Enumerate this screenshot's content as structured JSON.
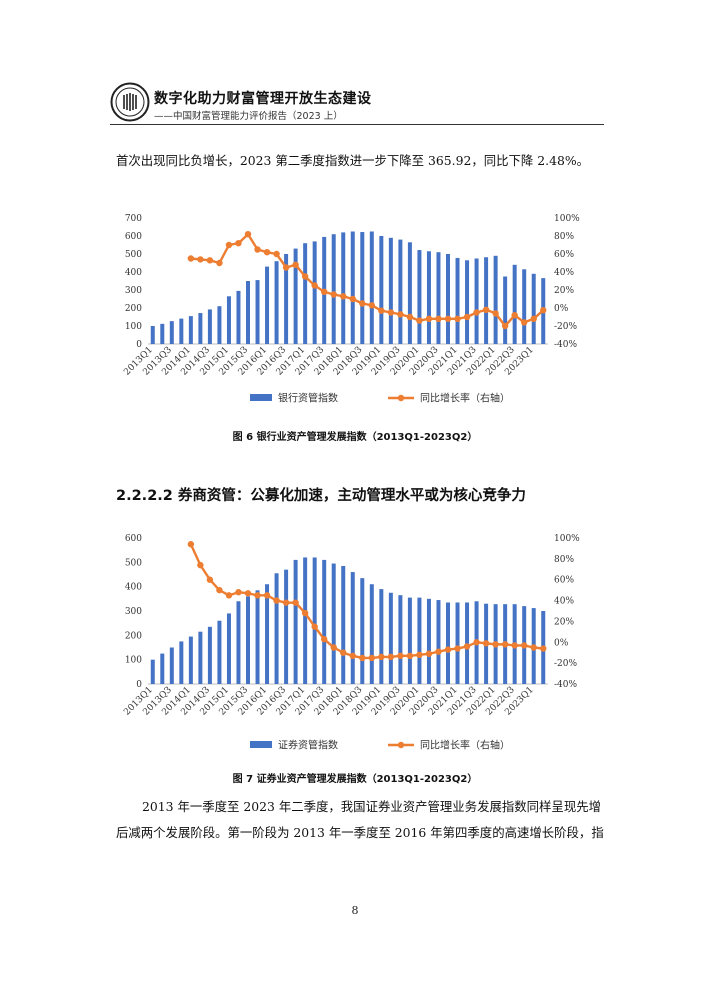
{
  "header": {
    "title": "数字化助力财富管理开放生态建设",
    "subtitle": "——中国财富管理能力评价报告（2023 上）"
  },
  "paragraph1": "首次出现同比负增长，2023 第二季度指数进一步下降至 365.92，同比下降 2.48%。",
  "section_heading": "2.2.2.2 券商资管：公募化加速，主动管理水平或为核心竞争力",
  "paragraph2_line1": "2013 年一季度至 2023 年二季度，我国证券业资产管理业务发展指数同样呈现先增",
  "paragraph2_line2": "后减两个发展阶段。第一阶段为 2013 年一季度至 2016 年第四季度的高速增长阶段，指",
  "page_number": "8",
  "colors": {
    "bar": "#4472C4",
    "line": "#ED7D31"
  },
  "chart_data": [
    {
      "type": "bar+line",
      "caption": "图 6 银行业资产管理发展指数（2013Q1-2023Q2）",
      "categories": [
        "2013Q1",
        "2013Q2",
        "2013Q3",
        "2013Q4",
        "2014Q1",
        "2014Q2",
        "2014Q3",
        "2014Q4",
        "2015Q1",
        "2015Q2",
        "2015Q3",
        "2015Q4",
        "2016Q1",
        "2016Q2",
        "2016Q3",
        "2016Q4",
        "2017Q1",
        "2017Q2",
        "2017Q3",
        "2017Q4",
        "2018Q1",
        "2018Q2",
        "2018Q3",
        "2018Q4",
        "2019Q1",
        "2019Q2",
        "2019Q3",
        "2019Q4",
        "2020Q1",
        "2020Q2",
        "2020Q3",
        "2020Q4",
        "2021Q1",
        "2021Q2",
        "2021Q3",
        "2021Q4",
        "2022Q1",
        "2022Q2",
        "2022Q3",
        "2022Q4",
        "2023Q1",
        "2023Q2"
      ],
      "tick_labels": [
        "2013Q1",
        "2013Q3",
        "2014Q1",
        "2014Q3",
        "2015Q1",
        "2015Q3",
        "2016Q1",
        "2016Q3",
        "2017Q1",
        "2017Q3",
        "2018Q1",
        "2018Q3",
        "2019Q1",
        "2019Q3",
        "2020Q1",
        "2020Q3",
        "2021Q1",
        "2021Q3",
        "2022Q1",
        "2022Q3",
        "2023Q1"
      ],
      "left_ticks": [
        "0",
        "100",
        "200",
        "300",
        "400",
        "500",
        "600",
        "700"
      ],
      "right_ticks": [
        "-40%",
        "-20%",
        "0%",
        "20%",
        "40%",
        "60%",
        "80%",
        "100%"
      ],
      "ylim_left": [
        0,
        700
      ],
      "ylim_right": [
        -40,
        100
      ],
      "series": [
        {
          "name": "银行资管指数",
          "kind": "bar",
          "values": [
            100,
            112,
            127,
            141,
            155,
            172,
            192,
            210,
            265,
            295,
            350,
            355,
            430,
            460,
            500,
            530,
            560,
            570,
            595,
            610,
            620,
            625,
            622,
            625,
            600,
            590,
            580,
            565,
            522,
            515,
            510,
            500,
            478,
            465,
            475,
            482,
            490,
            375,
            440,
            415,
            390,
            365.92
          ]
        },
        {
          "name": "同比增长率（右轴）",
          "kind": "line",
          "values": [
            null,
            null,
            null,
            null,
            55,
            54,
            53,
            50,
            70,
            72,
            82,
            65,
            62,
            60,
            45,
            48,
            35,
            25,
            18,
            15,
            13,
            10,
            5,
            3,
            -3,
            -5,
            -7,
            -10,
            -14,
            -12,
            -12,
            -12,
            -12,
            -10,
            -5,
            -2,
            -6,
            -20,
            -8,
            -16,
            -12,
            -2.48
          ]
        }
      ]
    },
    {
      "type": "bar+line",
      "caption": "图 7 证券业资产管理发展指数（2013Q1-2023Q2）",
      "categories": [
        "2013Q1",
        "2013Q2",
        "2013Q3",
        "2013Q4",
        "2014Q1",
        "2014Q2",
        "2014Q3",
        "2014Q4",
        "2015Q1",
        "2015Q2",
        "2015Q3",
        "2015Q4",
        "2016Q1",
        "2016Q2",
        "2016Q3",
        "2016Q4",
        "2017Q1",
        "2017Q2",
        "2017Q3",
        "2017Q4",
        "2018Q1",
        "2018Q2",
        "2018Q3",
        "2018Q4",
        "2019Q1",
        "2019Q2",
        "2019Q3",
        "2019Q4",
        "2020Q1",
        "2020Q2",
        "2020Q3",
        "2020Q4",
        "2021Q1",
        "2021Q2",
        "2021Q3",
        "2021Q4",
        "2022Q1",
        "2022Q2",
        "2022Q3",
        "2022Q4",
        "2023Q1",
        "2023Q2"
      ],
      "tick_labels": [
        "2013Q1",
        "2013Q3",
        "2014Q1",
        "2014Q3",
        "2015Q1",
        "2015Q3",
        "2016Q1",
        "2016Q3",
        "2017Q1",
        "2017Q3",
        "2018Q1",
        "2018Q3",
        "2019Q1",
        "2019Q3",
        "2020Q1",
        "2020Q3",
        "2021Q1",
        "2021Q3",
        "2022Q1",
        "2022Q3",
        "2023Q1"
      ],
      "left_ticks": [
        "0",
        "100",
        "200",
        "300",
        "400",
        "500",
        "600"
      ],
      "right_ticks": [
        "-40%",
        "-20%",
        "0%",
        "20%",
        "40%",
        "60%",
        "80%",
        "100%"
      ],
      "ylim_left": [
        0,
        600
      ],
      "ylim_right": [
        -40,
        100
      ],
      "series": [
        {
          "name": "证券资管指数",
          "kind": "bar",
          "values": [
            100,
            125,
            150,
            175,
            195,
            215,
            235,
            260,
            290,
            340,
            360,
            385,
            410,
            455,
            470,
            510,
            520,
            520,
            510,
            495,
            485,
            460,
            435,
            410,
            390,
            375,
            365,
            355,
            355,
            350,
            345,
            335,
            335,
            335,
            340,
            330,
            328,
            328,
            328,
            320,
            312,
            300
          ]
        },
        {
          "name": "同比增长率（右轴）",
          "kind": "line",
          "values": [
            null,
            null,
            null,
            null,
            94,
            74,
            60,
            50,
            45,
            48,
            47,
            45,
            45,
            40,
            38,
            38,
            28,
            15,
            3,
            -5,
            -10,
            -13,
            -15,
            -15,
            -14,
            -14,
            -13,
            -13,
            -12,
            -11,
            -9,
            -7,
            -6,
            -4,
            0,
            -1,
            -2,
            -2,
            -3,
            -3,
            -5,
            -6
          ]
        }
      ]
    }
  ]
}
